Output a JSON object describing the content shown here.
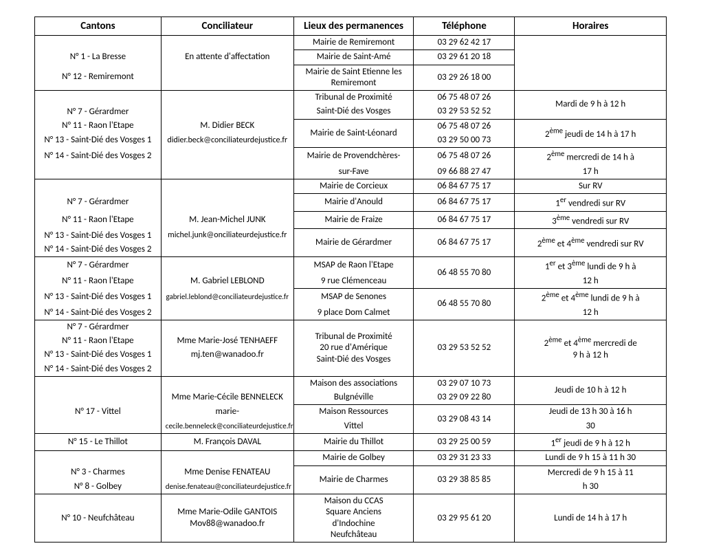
{
  "columns": {
    "cantons": "Cantons",
    "conciliateur": "Conciliateur",
    "lieux": "Lieux des permanences",
    "tel": "Téléphone",
    "horaires": "Horaires"
  },
  "widths": {
    "cantons": "20%",
    "conciliateur": "21%",
    "lieux": "19%",
    "tel": "16%",
    "horaires": "24%"
  },
  "cells": {
    "r1": {
      "lieux": "Mairie de Remiremont",
      "tel": "03 29 62 42 17"
    },
    "r2": {
      "cantons_a": "N° 1 - La Bresse",
      "conc": "En attente d'affectation",
      "lieux": "Mairie de Saint-Amé",
      "tel": "03 29 61 20 18"
    },
    "r3": {
      "cantons_b": "N° 12 - Remiremont",
      "lieux": "Mairie de Saint Etienne les Remiremont",
      "tel": "03 29 26 18 00"
    },
    "r4": {
      "lieux": "Tribunal de Proximité",
      "tel": "06 75 48 07 26"
    },
    "r5": {
      "cantons_a": "N° 7 - Gérardmer",
      "lieux": "Saint-Dié des Vosges",
      "tel": "03 29 53 52 52",
      "hor": "Mardi de 9 h à 12 h"
    },
    "r6": {
      "cantons_b": "N° 11 - Raon l'Etape",
      "conc_a": "M. Didier BECK",
      "lieux": "Mairie de Saint-Léonard",
      "tel": "06 75 48 07 26"
    },
    "r7": {
      "cantons_c": "N° 13 - Saint-Dié des Vosges 1",
      "conc_b": "didier.beck@conciliateurdejustice.fr",
      "tel": "03 29 50 00 73",
      "hor": "2ème jeudi de 14 h à 17 h"
    },
    "r8": {
      "cantons_d": "N° 14 - Saint-Dié des Vosges 2",
      "lieux": "Mairie de Provendchères-",
      "tel": "06 75 48 07 26",
      "hor": "2ème mercredi de 14 h à"
    },
    "r9": {
      "lieux": "sur-Fave",
      "tel": "09 66 88 27 47",
      "hor": "17 h"
    },
    "r10": {
      "lieux": "Mairie de Corcieux",
      "tel": "06 84 67 75 17",
      "hor": "Sur RV"
    },
    "r11": {
      "cantons_a": "N° 7 - Gérardmer",
      "lieux": "Mairie d'Anould",
      "tel": "06 84 67 75 17",
      "hor": "1er vendredi sur RV"
    },
    "r12": {
      "cantons_b": "N° 11 - Raon l'Etape",
      "conc_a": "M. Jean-Michel JUNK",
      "lieux": "Mairie de Fraize",
      "tel": "06 84 67 75 17",
      "hor": "3ème vendredi sur RV"
    },
    "r13": {
      "cantons_c": "N° 13 - Saint-Dié des Vosges 1",
      "conc_b": "michel.junk@onciliateurdejustice.fr"
    },
    "r14": {
      "cantons_d": "N° 14 - Saint-Dié des Vosges 2",
      "lieux": "Mairie de Gérardmer",
      "tel": "06 84 67 75 17",
      "hor": "2ème et 4ème vendredi sur RV"
    },
    "r15": {
      "cantons_a": "N° 7 - Gérardmer",
      "lieux": "MSAP de Raon l'Etape",
      "tel": "06 48 55 70 80",
      "hor": "1er et 3ème lundi de 9 h à"
    },
    "r16": {
      "cantons_b": "N° 11 - Raon l'Etape",
      "conc_a": "M. Gabriel LEBLOND",
      "lieux": "9 rue Clémenceau",
      "hor": "12 h"
    },
    "r17": {
      "cantons_c": "N° 13 - Saint-Dié des Vosges 1",
      "conc_b": "gabriel.leblond@conciliateurdejustice.fr",
      "lieux": "MSAP de Senones",
      "tel": "06 48 55 70 80",
      "hor": "2ème et 4ème lundi de 9 h à"
    },
    "r18": {
      "cantons_d": "N° 14 - Saint-Dié des Vosges 2",
      "lieux": "9 place Dom Calmet",
      "hor": "12 h"
    },
    "r19": {
      "cantons_a": "N° 7 - Gérardmer",
      "lieux_a": "Tribunal de Proximité"
    },
    "r20": {
      "cantons_b": "N° 11 - Raon l'Etape",
      "conc_a": "Mme Marie-José TENHAEFF",
      "tel": "03 29 53 52 52",
      "hor": "2ème et 4ème mercredi de"
    },
    "r21": {
      "cantons_c": "N° 13 - Saint-Dié des Vosges 1",
      "conc_b": "mj.ten@wanadoo.fr",
      "lieux_b": "20 rue d'Amérique",
      "hor2": "9 h à 12 h"
    },
    "r22": {
      "cantons_d": "N° 14 - Saint-Dié des Vosges 2",
      "lieux_c": "Saint-Dié des Vosges"
    },
    "r23": {
      "lieux": "Maison des associations",
      "tel": "03 29 07 10 73",
      "hor": "Jeudi de 10 h à 12 h"
    },
    "r24": {
      "conc_a": "Mme Marie-Cécile BENNELECK",
      "lieux": "Bulgnéville",
      "tel": "03 29 09 22 80"
    },
    "r25": {
      "cantons": "N° 17 - Vittel",
      "conc_b": "marie-",
      "lieux": "Maison Ressources",
      "tel": "03 29 08 43 14",
      "hor": "Jeudi de 13 h 30 à 16 h"
    },
    "r26": {
      "conc_c": "cecile.benneleck@conciliateurdejustice.fr",
      "lieux": "Vittel",
      "hor": "30"
    },
    "r27": {
      "cantons": "N° 15 - Le Thillot",
      "conc": "M. François DAVAL",
      "lieux": "Mairie du Thillot",
      "tel": "03 29 25 00 59",
      "hor": "1er jeudi de 9 h à 12 h"
    },
    "r28": {
      "lieux": "Mairie de Golbey",
      "tel": "03 29 31 23 33",
      "hor": "Lundi de 9 h 15 à 11 h 30"
    },
    "r29": {
      "cantons_a": "N° 3 - Charmes",
      "conc_a": "Mme Denise FENATEAU",
      "lieux": "Mairie de Charmes",
      "tel": "03 29 38 85 85",
      "hor": "Mercredi de 9 h 15 à 11"
    },
    "r30": {
      "cantons_b": "N° 8 - Golbey",
      "conc_b": "denise.fenateau@conciliateurdejustice.fr",
      "hor": "h 30"
    },
    "r31": {
      "cantons": "N° 10 - Neufchâteau",
      "conc_a": "Mme Marie-Odile GANTOIS",
      "conc_b": "Mov88@wanadoo.fr",
      "lieux_a": "Maison du CCAS",
      "lieux_b": "Square Anciens",
      "lieux_c": "d'Indochine",
      "lieux_d": "Neufchâteau",
      "tel": "03 29 95 61 20",
      "hor": "Lundi de 14 h à 17 h"
    }
  }
}
